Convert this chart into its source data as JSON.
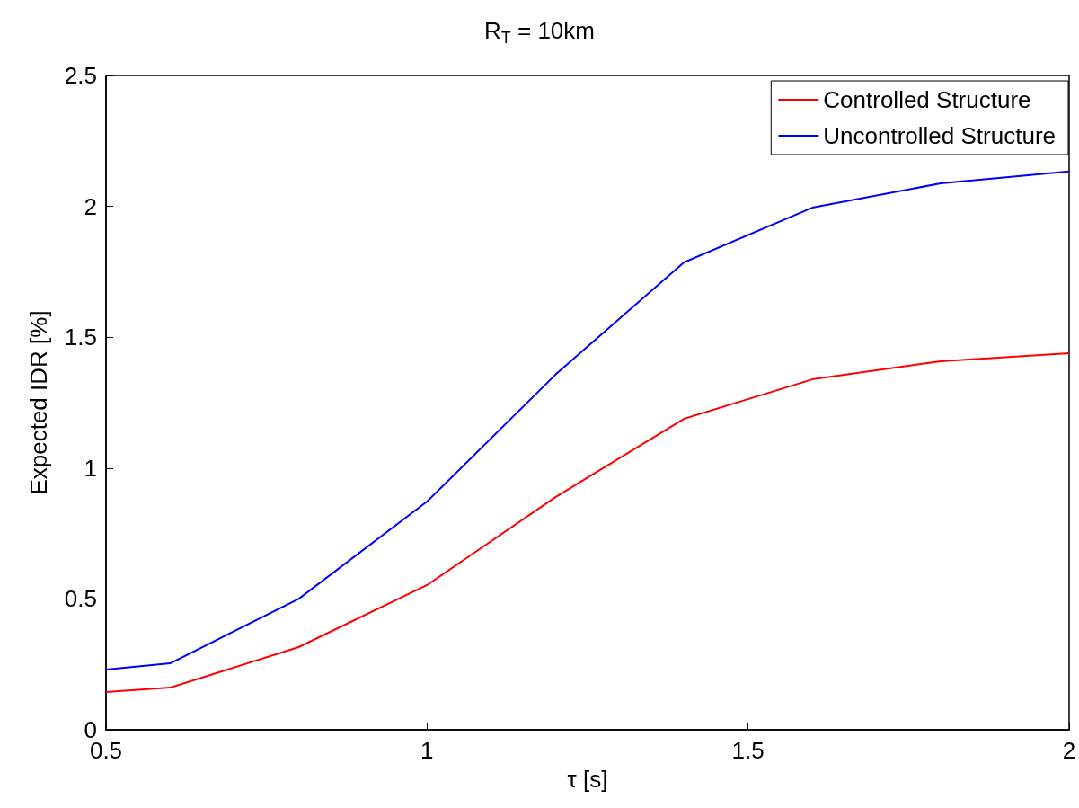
{
  "chart_data": {
    "type": "line",
    "title": "R$_{T}$ = 10km",
    "xlabel": "τ [s]",
    "ylabel": "Expected IDR [%]",
    "x": [
      0.5,
      0.6,
      0.8,
      1.0,
      1.2,
      1.4,
      1.6,
      1.8,
      2.0
    ],
    "series": [
      {
        "name": "Controlled Structure",
        "color": "#ff0000",
        "values": [
          0.144,
          0.161,
          0.316,
          0.553,
          0.889,
          1.188,
          1.339,
          1.408,
          1.439
        ]
      },
      {
        "name": "Uncontrolled Structure",
        "color": "#0000ff",
        "values": [
          0.23,
          0.254,
          0.5,
          0.872,
          1.357,
          1.786,
          1.995,
          2.088,
          2.133
        ]
      }
    ],
    "xlim": [
      0.5,
      2
    ],
    "xticks": [
      0.5,
      1,
      1.5,
      2
    ],
    "ylim": [
      0,
      2.5
    ],
    "yticks": [
      0,
      0.5,
      1,
      1.5,
      2,
      2.5
    ],
    "grid": false,
    "legend": "top right",
    "marker": "none",
    "line_style": "solid"
  }
}
